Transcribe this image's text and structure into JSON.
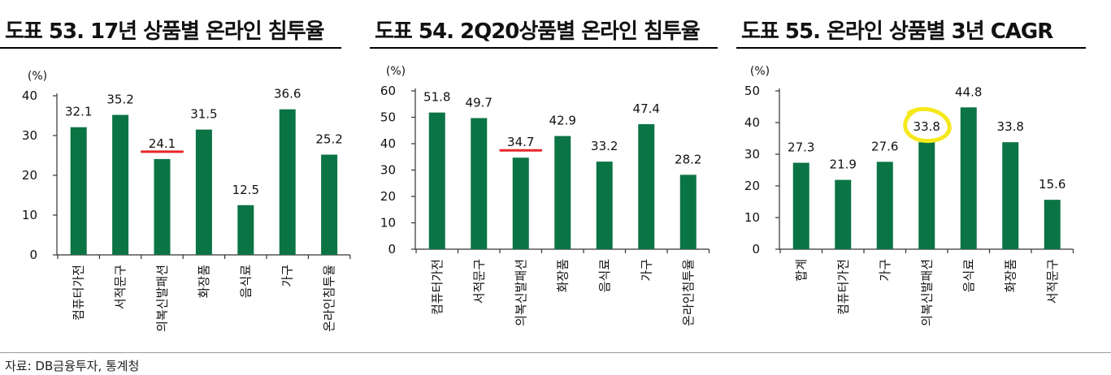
{
  "charts": [
    {
      "title": "도표 53. 17년 상품별 온라인 침투율",
      "chart_data": {
        "type": "bar",
        "unit": "(%)",
        "categories": [
          "컴퓨터가전",
          "서적문구",
          "의복신발패션",
          "화장품",
          "음식료",
          "가구",
          "온라인침투율"
        ],
        "values": [
          32.1,
          35.2,
          24.1,
          31.5,
          12.5,
          36.6,
          25.2
        ],
        "value_labels": [
          "32.1",
          "35.2",
          "24.1",
          "31.5",
          "12.5",
          "36.6",
          "25.2"
        ],
        "ylim": [
          0,
          40
        ],
        "yticks": [
          0,
          10,
          20,
          30,
          40
        ],
        "grid": false,
        "bar_color": "#0b7444",
        "underline_index": 2,
        "underline_color": "#e8262a"
      }
    },
    {
      "title": "도표 54. 2Q20상품별 온라인 침투율",
      "chart_data": {
        "type": "bar",
        "unit": "(%)",
        "categories": [
          "컴퓨터가전",
          "서적문구",
          "의복신발패션",
          "화장품",
          "음식료",
          "가구",
          "온라인침투율"
        ],
        "values": [
          51.8,
          49.7,
          34.7,
          42.9,
          33.2,
          47.4,
          28.2
        ],
        "value_labels": [
          "51.8",
          "49.7",
          "34.7",
          "42.9",
          "33.2",
          "47.4",
          "28.2"
        ],
        "ylim": [
          0,
          60
        ],
        "yticks": [
          0,
          10,
          20,
          30,
          40,
          50,
          60
        ],
        "grid": false,
        "bar_color": "#0b7444",
        "underline_index": 2,
        "underline_color": "#e8262a"
      }
    },
    {
      "title": "도표 55. 온라인 상품별 3년 CAGR",
      "chart_data": {
        "type": "bar",
        "unit": "(%)",
        "categories": [
          "합계",
          "컴퓨터가전",
          "가구",
          "의복신발패션",
          "음식료",
          "화장품",
          "서적문구"
        ],
        "values": [
          27.3,
          21.9,
          27.6,
          33.8,
          44.8,
          33.8,
          15.6
        ],
        "value_labels": [
          "27.3",
          "21.9",
          "27.6",
          "33.8",
          "44.8",
          "33.8",
          "15.6"
        ],
        "ylim": [
          0,
          50
        ],
        "yticks": [
          0,
          10,
          20,
          30,
          40,
          50
        ],
        "grid": false,
        "bar_color": "#0b7444",
        "circle_index": 3,
        "circle_color": "#f5e81c"
      }
    }
  ],
  "source": "자료: DB금융투자, 통계청"
}
